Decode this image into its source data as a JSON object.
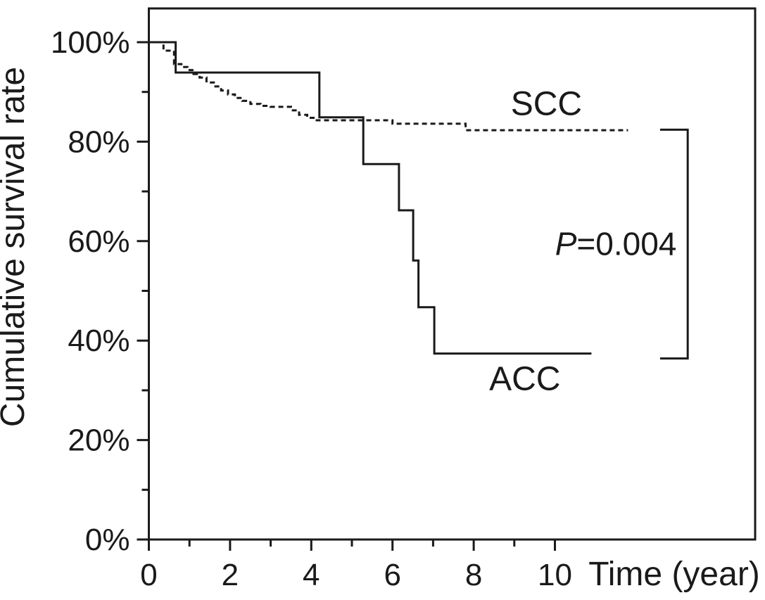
{
  "figure": {
    "background_color": "#ffffff",
    "ink_color": "#1a1a1a"
  },
  "chart_data": {
    "type": "line",
    "subtype": "kaplan-meier-step",
    "title": "",
    "xlabel": "Time (year)",
    "ylabel": "Cumulative survival rate",
    "xlim": [
      0,
      14.9
    ],
    "ylim": [
      0,
      100
    ],
    "grid": false,
    "legend_position": "inline-labels",
    "x_ticks_major": [
      0,
      2,
      4,
      6,
      8,
      10
    ],
    "x_tick_labels": [
      "0",
      "2",
      "4",
      "6",
      "8",
      "10"
    ],
    "x_ticks_minor": [
      1,
      3,
      5,
      7,
      9
    ],
    "y_ticks_major": [
      0,
      20,
      40,
      60,
      80,
      100
    ],
    "y_tick_labels": [
      "0%",
      "20%",
      "40%",
      "60%",
      "80%",
      "100%"
    ],
    "y_ticks_minor": [
      10,
      30,
      50,
      70,
      90
    ],
    "series": [
      {
        "name": "SCC",
        "line_style": "dashed",
        "color": "#1a1a1a",
        "label": {
          "text": "SCC",
          "x_year": 9.79,
          "y_pct": 87.6
        },
        "end_year": 11.8,
        "points": [
          [
            0,
            100
          ],
          [
            0.36,
            98.3
          ],
          [
            0.62,
            95.6
          ],
          [
            0.8,
            95.0
          ],
          [
            0.95,
            94.4
          ],
          [
            1.1,
            93.6
          ],
          [
            1.25,
            92.9
          ],
          [
            1.42,
            91.9
          ],
          [
            1.6,
            91.1
          ],
          [
            1.78,
            90.3
          ],
          [
            1.95,
            89.5
          ],
          [
            2.12,
            88.8
          ],
          [
            2.3,
            88.2
          ],
          [
            2.5,
            87.6
          ],
          [
            2.75,
            87.2
          ],
          [
            3.0,
            87.0
          ],
          [
            3.5,
            86.3
          ],
          [
            3.7,
            85.4
          ],
          [
            3.9,
            84.8
          ],
          [
            4.1,
            84.3
          ],
          [
            6.0,
            83.6
          ],
          [
            7.8,
            82.3
          ]
        ]
      },
      {
        "name": "ACC",
        "line_style": "solid",
        "color": "#1a1a1a",
        "label": {
          "text": "ACC",
          "x_year": 9.26,
          "y_pct": 32.3
        },
        "end_year": 10.9,
        "points": [
          [
            0,
            100
          ],
          [
            0.66,
            93.9
          ],
          [
            4.2,
            84.9
          ],
          [
            5.28,
            75.5
          ],
          [
            6.16,
            66.2
          ],
          [
            6.51,
            56.1
          ],
          [
            6.64,
            46.7
          ],
          [
            7.03,
            37.4
          ]
        ]
      }
    ],
    "annotations": {
      "p_value": {
        "italic_part": "P",
        "rest_part": "=0.004",
        "full_text": "P=0.004",
        "x_year": 11.5,
        "y_pct": 59.5
      },
      "comparison_bracket": {
        "x_arm_year": 12.59,
        "x_line_year": 13.27,
        "y_top_pct": 82.4,
        "y_bottom_pct": 36.4
      }
    }
  }
}
